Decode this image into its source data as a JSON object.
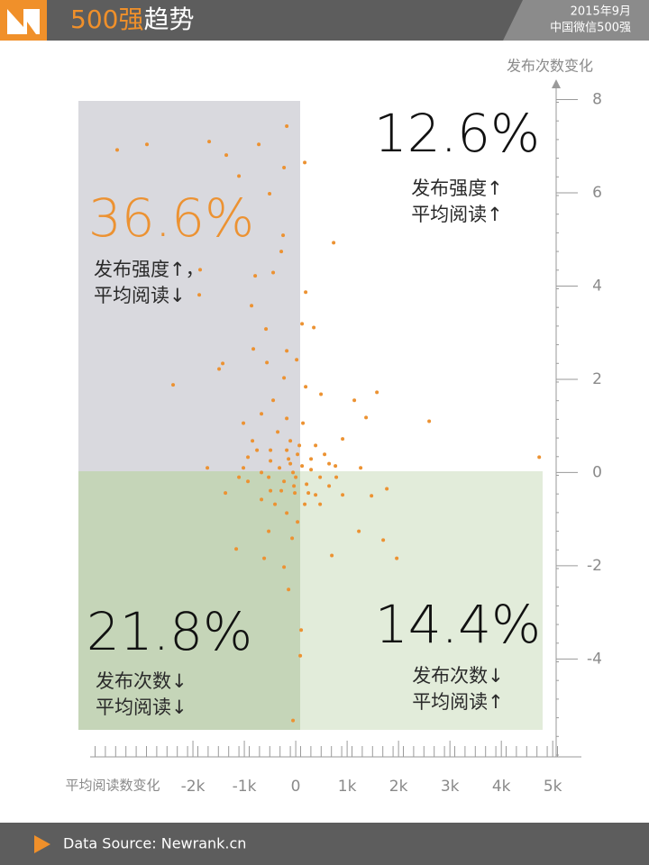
{
  "header": {
    "title_highlight": "500强",
    "title_rest": "趋势",
    "date": "2015年9月",
    "subtitle": "中国微信500强"
  },
  "chart_data": {
    "type": "scatter",
    "xlabel": "平均阅读数变化",
    "ylabel": "发布次数变化",
    "color": "#ec9232",
    "xlim": [
      -4000,
      5470
    ],
    "ylim": [
      -6.1,
      8.3
    ],
    "xticks": [
      {
        "value": -2000,
        "label": "-2k"
      },
      {
        "value": -1000,
        "label": "-1k"
      },
      0,
      {
        "value": 1000,
        "label": "1k"
      },
      {
        "value": 2000,
        "label": "2k"
      },
      {
        "value": 3000,
        "label": "3k"
      },
      {
        "value": 4000,
        "label": "4k"
      },
      {
        "value": 5000,
        "label": "5k"
      }
    ],
    "yticks": [
      -4,
      -2,
      0,
      2,
      4,
      6,
      8
    ],
    "x": [
      -3474,
      -2895,
      -1684,
      -1351,
      -719,
      -175,
      -1105,
      175,
      -228,
      -509,
      737,
      -246,
      -281,
      -1860,
      -1877,
      -439,
      -789,
      193,
      -860,
      123,
      351,
      -579,
      -825,
      -175,
      -1421,
      -1491,
      -2386,
      -561,
      18,
      -228,
      1579,
      1140,
      491,
      193,
      1368,
      2596,
      4737,
      -439,
      -667,
      -1018,
      912,
      649,
      789,
      1263,
      -1719,
      -1368,
      1772,
      1474,
      912,
      246,
      -491,
      -930,
      35,
      -70,
      -526,
      -1158,
      -614,
      702,
      1228,
      1702,
      1965,
      -140,
      105,
      88,
      -53,
      -228,
      -140,
      -316,
      -53,
      123,
      298,
      35,
      -491,
      -667,
      -228,
      211,
      474,
      -105,
      -351,
      -754,
      -1018,
      561,
      386,
      140,
      -175,
      -842,
      -526,
      -281,
      -18,
      386,
      649,
      -667,
      -404,
      175,
      -105,
      0,
      -175,
      298,
      -930,
      -1105,
      772,
      474,
      -175,
      -491,
      70,
      -35
    ],
    "y": [
      6.92,
      7.04,
      7.1,
      6.81,
      7.04,
      7.43,
      6.36,
      6.65,
      6.54,
      5.98,
      4.93,
      5.09,
      4.74,
      4.35,
      3.81,
      4.29,
      4.22,
      3.87,
      3.58,
      3.19,
      3.11,
      3.08,
      2.65,
      2.61,
      2.34,
      2.22,
      1.88,
      2.36,
      2.42,
      2.03,
      1.72,
      1.55,
      1.68,
      1.84,
      1.18,
      1.1,
      0.33,
      1.55,
      1.26,
      1.06,
      0.72,
      0.19,
      -0.1,
      0.1,
      0.1,
      -0.44,
      -0.35,
      -0.5,
      -0.48,
      -0.44,
      -0.39,
      -0.19,
      -1.06,
      -1.41,
      -1.26,
      -1.64,
      -1.84,
      -1.78,
      -1.26,
      -1.45,
      -1.84,
      -2.51,
      -3.38,
      -3.93,
      -5.32,
      -2.03,
      0.29,
      0.1,
      0,
      0.14,
      0.06,
      0.39,
      0.25,
      0,
      -0.19,
      -0.25,
      -0.1,
      0.68,
      0.87,
      0.48,
      0.1,
      0.39,
      0.58,
      1.06,
      1.16,
      0.68,
      -0.1,
      -0.39,
      -0.44,
      -0.48,
      -0.29,
      -0.58,
      -0.68,
      -0.68,
      0.19,
      -0.1,
      0.48,
      0.29,
      0.33,
      -0.1,
      0.14,
      -0.68,
      -0.87,
      0.48,
      0.58,
      -0.29
    ],
    "quadrants": {
      "values": [
        12.6,
        36.6,
        21.8,
        14.4
      ],
      "value_labels": [
        "12.6%",
        "36.6%",
        "21.8%",
        "14.4%"
      ],
      "captions": [
        [
          "发布强度↑",
          "平均阅读↑"
        ],
        [
          "发布强度↑，",
          "平均阅读↓"
        ],
        [
          "发布次数↓",
          "平均阅读↓"
        ],
        [
          "发布次数↓",
          "平均阅读↑"
        ]
      ]
    }
  },
  "footer": {
    "source": "Data Source: Newrank.cn"
  }
}
